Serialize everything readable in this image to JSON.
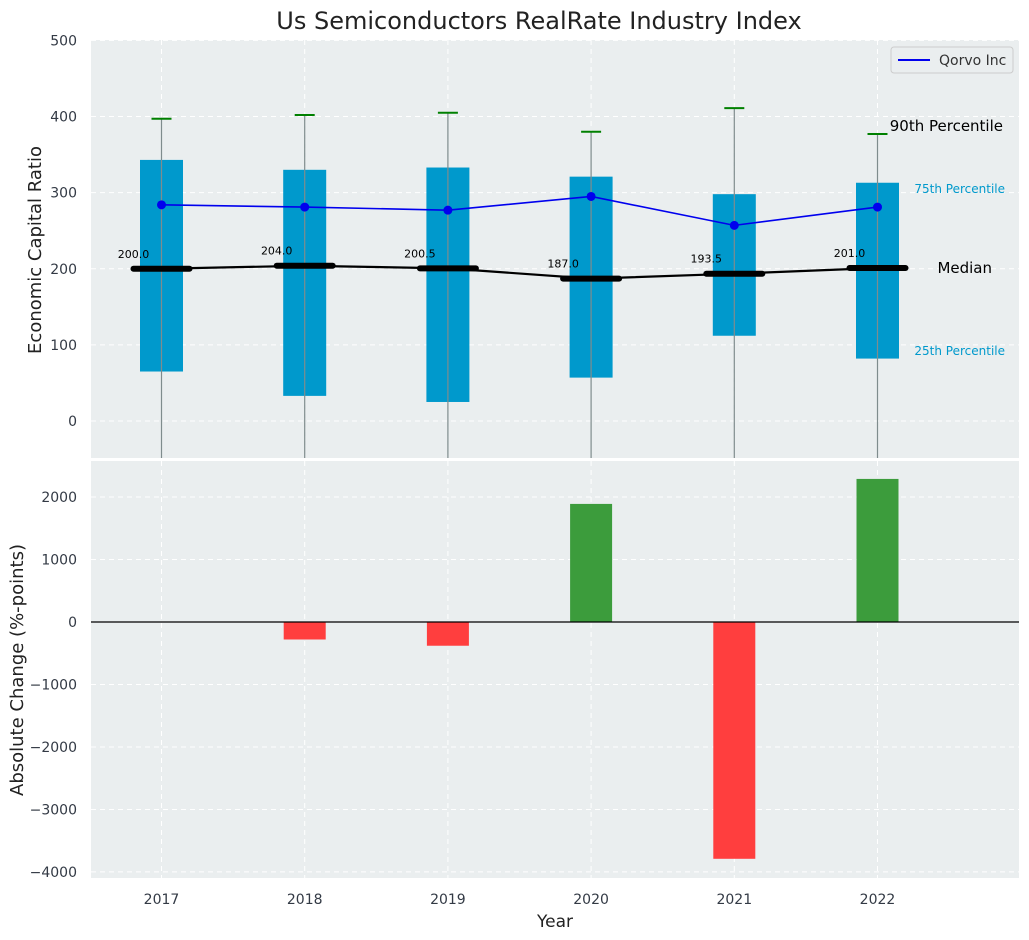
{
  "chart_data": {
    "title": "Us Semiconductors RealRate Industry Index",
    "years": [
      "2017",
      "2018",
      "2019",
      "2020",
      "2021",
      "2022"
    ],
    "top": {
      "type": "box",
      "ylabel": "Economic Capital Ratio",
      "ylim": [
        -50,
        500
      ],
      "yticks": [
        "0",
        "100",
        "200",
        "300",
        "400",
        "500"
      ],
      "p25": [
        65,
        33,
        25,
        57,
        112,
        82
      ],
      "p75": [
        343,
        330,
        333,
        321,
        298,
        313
      ],
      "p90": [
        397,
        402,
        405,
        380,
        411,
        377
      ],
      "median": [
        200.0,
        204.0,
        200.5,
        187.0,
        193.5,
        201.0
      ],
      "median_labels": [
        "200.0",
        "204.0",
        "200.5",
        "187.0",
        "193.5",
        "201.0"
      ],
      "series": [
        {
          "name": "Qorvo Inc",
          "values": [
            284,
            281,
            277,
            295,
            257,
            281
          ],
          "color": "#0000ee"
        }
      ],
      "legend": {
        "position": "top-right"
      },
      "annotations": {
        "p90": "90th Percentile",
        "p75": "75th Percentile",
        "median": "Median",
        "p25": "25th Percentile"
      },
      "colors": {
        "box": "#0099cc",
        "whisker_cap": "#008000",
        "median": "#000000",
        "grid": "#ffffff",
        "bg": "#eaeeef"
      }
    },
    "bottom": {
      "type": "bar",
      "ylabel": "Absolute Change (%-points)",
      "xlabel": "Year",
      "ylim": [
        -4100,
        2600
      ],
      "yticks": [
        "−4000",
        "−3000",
        "−2000",
        "−1000",
        "0",
        "1000",
        "2000"
      ],
      "values": [
        0,
        -280,
        -380,
        1890,
        -3790,
        2290
      ],
      "colors": {
        "positive": "#3c9c3c",
        "negative": "#ff3e3e"
      }
    }
  }
}
